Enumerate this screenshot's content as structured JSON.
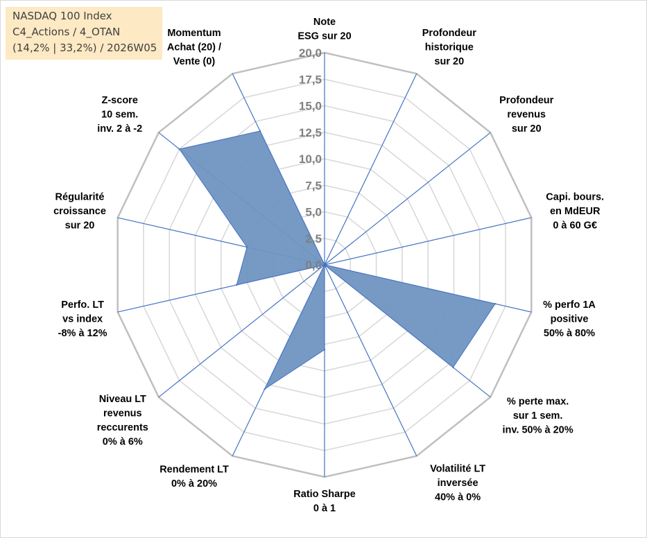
{
  "info_box": {
    "line1": "NASDAQ 100 Index",
    "line2": "C4_Actions / 4_OTAN",
    "line3": "(14,2% | 33,2%) / 2026W05"
  },
  "colors": {
    "fill": "#6f95c0",
    "stroke": "#4472c4",
    "grid": "#d9d9d9",
    "outer_ring": "#bfbfbf",
    "spoke": "#4472c4",
    "text": "#000000",
    "tick_text": "#7f7f7f",
    "info_bg": "#fde9c3"
  },
  "chart_data": {
    "type": "radar",
    "title": "",
    "rmin": 0,
    "rmax": 20,
    "tick_step": 2.5,
    "tick_labels": [
      "0,0",
      "2,5",
      "5,0",
      "7,5",
      "10,0",
      "12,5",
      "15,0",
      "17,5",
      "20,0"
    ],
    "grid": true,
    "axes": [
      {
        "label": [
          "Note",
          "ESG sur 20"
        ]
      },
      {
        "label": [
          "Profondeur",
          "historique",
          "sur 20"
        ]
      },
      {
        "label": [
          "Profondeur",
          "revenus",
          "sur 20"
        ]
      },
      {
        "label": [
          "Capi. bours.",
          "en MdEUR",
          "0 à 60 G€"
        ]
      },
      {
        "label": [
          "% perfo 1A",
          "positive",
          "50% à 80%"
        ]
      },
      {
        "label": [
          "% perte max.",
          "sur 1 sem.",
          "inv. 50% à 20%"
        ]
      },
      {
        "label": [
          "Volatilité LT",
          "inversée",
          "40% à 0%"
        ]
      },
      {
        "label": [
          "Ratio Sharpe",
          "0 à 1"
        ]
      },
      {
        "label": [
          "Rendement LT",
          "0% à 20%"
        ]
      },
      {
        "label": [
          "Niveau LT",
          "revenus",
          "reccurents",
          "0% à 6%"
        ]
      },
      {
        "label": [
          "Perfo. LT",
          "vs index",
          "-8% à 12%"
        ]
      },
      {
        "label": [
          "Régularité",
          "croissance",
          "sur 20"
        ]
      },
      {
        "label": [
          "Z-score",
          "10 sem.",
          "inv. 2 à -2"
        ]
      },
      {
        "label": [
          "Momentum",
          "Achat (20) /",
          "Vente (0)"
        ]
      }
    ],
    "series": [
      {
        "values": [
          0,
          0,
          0,
          0,
          16.5,
          15.5,
          0,
          8,
          13,
          0,
          8.5,
          7.5,
          17.5,
          14
        ]
      }
    ]
  }
}
